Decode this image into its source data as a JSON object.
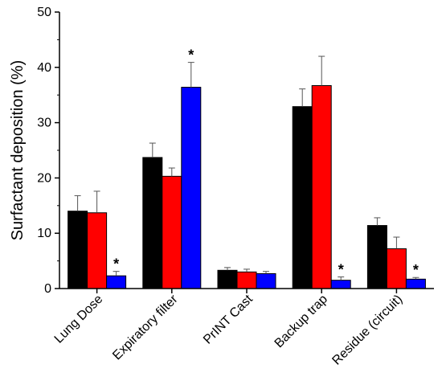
{
  "chart_data": {
    "type": "bar",
    "ylabel": "Surfactant deposition (%)",
    "xlabel": "",
    "ylim": [
      0,
      50
    ],
    "yticks": [
      0,
      10,
      20,
      30,
      40,
      50
    ],
    "grid": false,
    "categories": [
      "Lung Dose",
      "Expiratory filter",
      "PrINT Cast",
      "Backup trap",
      "Residue (circuit)"
    ],
    "series": [
      {
        "color": "#000000",
        "values": [
          14.0,
          23.7,
          3.3,
          32.9,
          11.4
        ],
        "errors": [
          2.8,
          2.6,
          0.5,
          3.2,
          1.4
        ]
      },
      {
        "color": "#ff0000",
        "values": [
          13.7,
          20.3,
          3.0,
          36.7,
          7.2
        ],
        "errors": [
          3.9,
          1.5,
          0.5,
          5.3,
          2.1
        ]
      },
      {
        "color": "#0000ff",
        "values": [
          2.3,
          36.4,
          2.7,
          1.5,
          1.7
        ],
        "errors": [
          0.8,
          4.5,
          0.4,
          0.6,
          0.3
        ]
      }
    ],
    "annotations": [
      {
        "series": 2,
        "category": 0,
        "text": "*"
      },
      {
        "series": 2,
        "category": 1,
        "text": "*"
      },
      {
        "series": 2,
        "category": 3,
        "text": "*"
      },
      {
        "series": 2,
        "category": 4,
        "text": "*"
      }
    ]
  }
}
